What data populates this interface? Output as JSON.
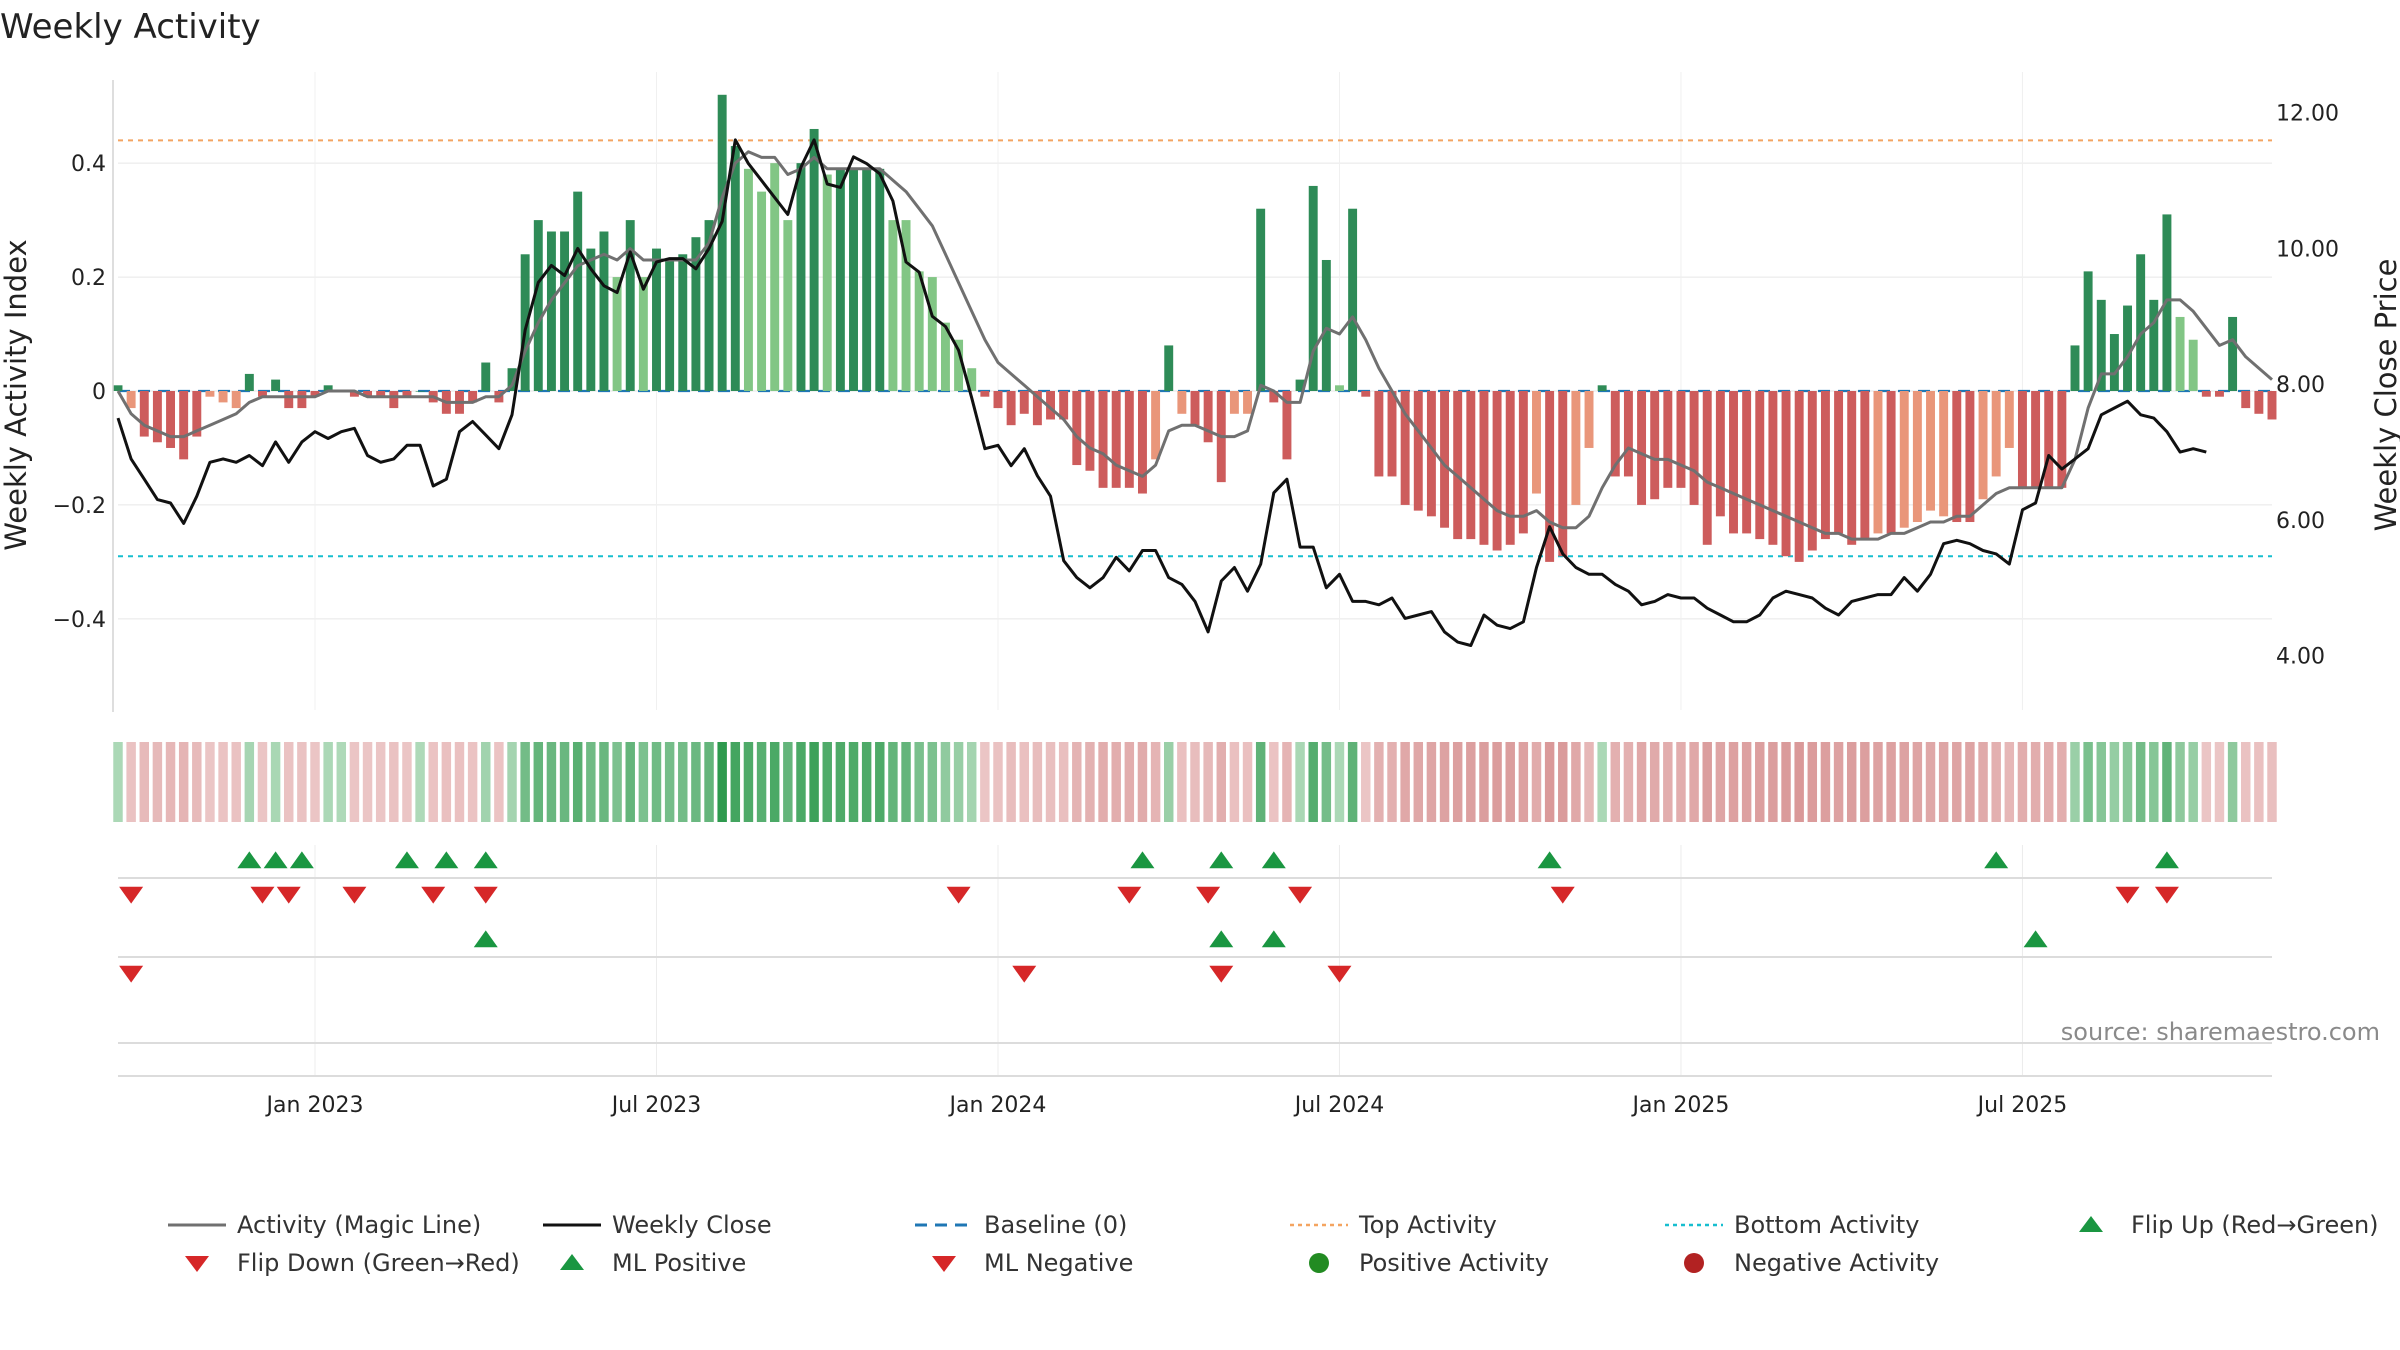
{
  "title": "Weekly Activity",
  "source": "source: sharemaestro.com",
  "colors": {
    "strong_green": "#2e8b57",
    "light_green": "#82c685",
    "strong_red": "#cd5c5c",
    "light_red": "#e9967a",
    "magic_line": "#707070",
    "close_line": "#111111",
    "baseline": "#1f77b4",
    "top_line": "#f4a460",
    "bottom_line": "#17becf",
    "marker_up": "#1a9641",
    "marker_down": "#d62728",
    "pos_dot": "#228b22",
    "neg_dot": "#b22222",
    "grid": "#e6e6e6"
  },
  "chart_data": {
    "type": "bar",
    "title": "Weekly Activity",
    "ylabel_left": "Weekly Activity Index",
    "ylabel_right": "Weekly Close Price",
    "ylim_left": [
      -0.56,
      0.56
    ],
    "ylim_right": [
      3.2,
      12.6
    ],
    "left_ticks": [
      {
        "v": 0.4,
        "label": "0.4"
      },
      {
        "v": 0.2,
        "label": "0.2"
      },
      {
        "v": 0,
        "label": "0"
      },
      {
        "v": -0.2,
        "label": "−0.2"
      },
      {
        "v": -0.4,
        "label": "−0.4"
      }
    ],
    "right_ticks": [
      {
        "v": 12,
        "label": "12.00"
      },
      {
        "v": 10,
        "label": "10.00"
      },
      {
        "v": 8,
        "label": "8.00"
      },
      {
        "v": 6,
        "label": "6.00"
      },
      {
        "v": 4,
        "label": "4.00"
      }
    ],
    "x_ticks": [
      {
        "i": 15,
        "label": "Jan 2023"
      },
      {
        "i": 41,
        "label": "Jul 2023"
      },
      {
        "i": 67,
        "label": "Jan 2024"
      },
      {
        "i": 93,
        "label": "Jul 2024"
      },
      {
        "i": 119,
        "label": "Jan 2025"
      },
      {
        "i": 145,
        "label": "Jul 2025"
      }
    ],
    "top_activity": 0.44,
    "bottom_activity": -0.29,
    "baseline": 0,
    "activity": [
      0.01,
      -0.03,
      -0.08,
      -0.09,
      -0.1,
      -0.12,
      -0.08,
      -0.01,
      -0.02,
      -0.03,
      0.03,
      -0.01,
      0.02,
      -0.03,
      -0.03,
      -0.01,
      0.01,
      0.0,
      -0.01,
      -0.01,
      -0.01,
      -0.03,
      -0.01,
      -0.0,
      -0.02,
      -0.04,
      -0.04,
      -0.02,
      0.05,
      -0.02,
      0.04,
      0.24,
      0.3,
      0.28,
      0.28,
      0.35,
      0.25,
      0.28,
      0.2,
      0.3,
      0.2,
      0.25,
      0.23,
      0.24,
      0.27,
      0.3,
      0.52,
      0.43,
      0.39,
      0.35,
      0.4,
      0.3,
      0.4,
      0.46,
      0.38,
      0.39,
      0.39,
      0.39,
      0.39,
      0.3,
      0.3,
      0.21,
      0.2,
      0.12,
      0.09,
      0.04,
      -0.01,
      -0.03,
      -0.06,
      -0.04,
      -0.06,
      -0.05,
      -0.05,
      -0.13,
      -0.14,
      -0.17,
      -0.17,
      -0.17,
      -0.18,
      -0.12,
      0.08,
      -0.04,
      -0.06,
      -0.09,
      -0.16,
      -0.04,
      -0.04,
      0.32,
      -0.02,
      -0.12,
      0.02,
      0.36,
      0.23,
      0.01,
      0.32,
      -0.01,
      -0.15,
      -0.15,
      -0.2,
      -0.21,
      -0.22,
      -0.24,
      -0.26,
      -0.26,
      -0.27,
      -0.28,
      -0.27,
      -0.25,
      -0.18,
      -0.3,
      -0.29,
      -0.2,
      -0.1,
      0.01,
      -0.15,
      -0.15,
      -0.2,
      -0.19,
      -0.17,
      -0.17,
      -0.2,
      -0.27,
      -0.22,
      -0.25,
      -0.25,
      -0.26,
      -0.27,
      -0.29,
      -0.3,
      -0.28,
      -0.26,
      -0.25,
      -0.27,
      -0.26,
      -0.25,
      -0.25,
      -0.24,
      -0.23,
      -0.21,
      -0.22,
      -0.23,
      -0.23,
      -0.19,
      -0.15,
      -0.1,
      -0.17,
      -0.17,
      -0.17,
      -0.17,
      0.08,
      0.21,
      0.16,
      0.1,
      0.15,
      0.24,
      0.16,
      0.31,
      0.13,
      0.09,
      -0.01,
      -0.01,
      0.13,
      -0.03,
      -0.04,
      -0.05
    ],
    "magic_line": [
      0.0,
      -0.04,
      -0.06,
      -0.07,
      -0.08,
      -0.08,
      -0.07,
      -0.06,
      -0.05,
      -0.04,
      -0.02,
      -0.01,
      -0.01,
      -0.01,
      -0.01,
      -0.01,
      0.0,
      0.0,
      0.0,
      -0.01,
      -0.01,
      -0.01,
      -0.01,
      -0.01,
      -0.01,
      -0.02,
      -0.02,
      -0.02,
      -0.01,
      -0.01,
      0.01,
      0.07,
      0.12,
      0.16,
      0.19,
      0.22,
      0.23,
      0.24,
      0.23,
      0.25,
      0.23,
      0.23,
      0.23,
      0.23,
      0.23,
      0.26,
      0.34,
      0.4,
      0.42,
      0.41,
      0.41,
      0.38,
      0.39,
      0.41,
      0.39,
      0.39,
      0.39,
      0.39,
      0.39,
      0.37,
      0.35,
      0.32,
      0.29,
      0.24,
      0.19,
      0.14,
      0.09,
      0.05,
      0.03,
      0.01,
      -0.01,
      -0.03,
      -0.05,
      -0.08,
      -0.1,
      -0.11,
      -0.13,
      -0.14,
      -0.15,
      -0.13,
      -0.07,
      -0.06,
      -0.06,
      -0.07,
      -0.08,
      -0.08,
      -0.07,
      0.01,
      0.0,
      -0.02,
      -0.02,
      0.07,
      0.11,
      0.1,
      0.13,
      0.09,
      0.04,
      0.0,
      -0.04,
      -0.07,
      -0.1,
      -0.13,
      -0.15,
      -0.17,
      -0.19,
      -0.21,
      -0.22,
      -0.22,
      -0.21,
      -0.23,
      -0.24,
      -0.24,
      -0.22,
      -0.17,
      -0.13,
      -0.1,
      -0.11,
      -0.12,
      -0.12,
      -0.13,
      -0.14,
      -0.16,
      -0.17,
      -0.18,
      -0.19,
      -0.2,
      -0.21,
      -0.22,
      -0.23,
      -0.24,
      -0.25,
      -0.25,
      -0.26,
      -0.26,
      -0.26,
      -0.25,
      -0.25,
      -0.24,
      -0.23,
      -0.23,
      -0.22,
      -0.22,
      -0.2,
      -0.18,
      -0.17,
      -0.17,
      -0.17,
      -0.17,
      -0.17,
      -0.12,
      -0.03,
      0.03,
      0.03,
      0.06,
      0.1,
      0.12,
      0.16,
      0.16,
      0.14,
      0.11,
      0.08,
      0.09,
      0.06,
      0.04,
      0.02
    ],
    "weekly_close": [
      7.5,
      6.9,
      6.6,
      6.3,
      6.25,
      5.95,
      6.35,
      6.85,
      6.9,
      6.85,
      6.95,
      6.8,
      7.15,
      6.85,
      7.15,
      7.3,
      7.2,
      7.3,
      7.35,
      6.95,
      6.85,
      6.9,
      7.1,
      7.1,
      6.5,
      6.6,
      7.3,
      7.45,
      7.25,
      7.05,
      7.55,
      8.8,
      9.5,
      9.75,
      9.6,
      10.0,
      9.7,
      9.45,
      9.35,
      9.95,
      9.4,
      9.8,
      9.85,
      9.85,
      9.7,
      10.0,
      10.4,
      11.6,
      11.25,
      11.0,
      10.75,
      10.5,
      11.2,
      11.6,
      10.95,
      10.9,
      11.35,
      11.25,
      11.1,
      10.7,
      9.8,
      9.65,
      9.0,
      8.85,
      8.5,
      7.8,
      7.05,
      7.1,
      6.8,
      7.05,
      6.65,
      6.35,
      5.4,
      5.15,
      5.0,
      5.15,
      5.45,
      5.25,
      5.55,
      5.55,
      5.15,
      5.05,
      4.8,
      4.35,
      5.1,
      5.3,
      4.95,
      5.35,
      6.4,
      6.6,
      5.6,
      5.6,
      5.0,
      5.2,
      4.8,
      4.8,
      4.75,
      4.85,
      4.55,
      4.6,
      4.65,
      4.35,
      4.2,
      4.15,
      4.6,
      4.45,
      4.4,
      4.5,
      5.3,
      5.9,
      5.5,
      5.3,
      5.2,
      5.2,
      5.05,
      4.95,
      4.75,
      4.8,
      4.9,
      4.85,
      4.85,
      4.7,
      4.6,
      4.5,
      4.5,
      4.6,
      4.85,
      4.95,
      4.9,
      4.85,
      4.7,
      4.6,
      4.8,
      4.85,
      4.9,
      4.9,
      5.15,
      4.95,
      5.2,
      5.65,
      5.7,
      5.65,
      5.55,
      5.5,
      5.35,
      6.15,
      6.25,
      6.95,
      6.75,
      6.9,
      7.05,
      7.55,
      7.65,
      7.75,
      7.55,
      7.5,
      7.3,
      7.0,
      7.05,
      7.0
    ],
    "flips": {
      "up": [
        10,
        12,
        14,
        22,
        25,
        28,
        78,
        84,
        88,
        109,
        143,
        156
      ],
      "down": [
        1,
        11,
        13,
        18,
        24,
        28,
        64,
        77,
        83,
        90,
        110,
        153,
        156
      ]
    },
    "ml_signals": {
      "positive": [
        28,
        84,
        88,
        146
      ],
      "negative": [
        1,
        69,
        84,
        93
      ]
    },
    "legend": [
      {
        "label": "Activity (Magic Line)",
        "kind": "line",
        "color": "#707070",
        "dash": ""
      },
      {
        "label": "Weekly Close",
        "kind": "line",
        "color": "#111111",
        "dash": ""
      },
      {
        "label": "Baseline (0)",
        "kind": "line",
        "color": "#1f77b4",
        "dash": "12 8"
      },
      {
        "label": "Top Activity",
        "kind": "line",
        "color": "#f4a460",
        "dash": "4 4"
      },
      {
        "label": "Bottom Activity",
        "kind": "line",
        "color": "#17becf",
        "dash": "4 4"
      },
      {
        "label": "Flip Up (Red→Green)",
        "kind": "tri-up",
        "color": "#1a9641"
      },
      {
        "label": "Flip Down (Green→Red)",
        "kind": "tri-down",
        "color": "#d62728"
      },
      {
        "label": "ML Positive",
        "kind": "tri-up",
        "color": "#1a9641"
      },
      {
        "label": "ML Negative",
        "kind": "tri-down",
        "color": "#d62728"
      },
      {
        "label": "Positive Activity",
        "kind": "dot",
        "color": "#228b22"
      },
      {
        "label": "Negative Activity",
        "kind": "dot",
        "color": "#b22222"
      }
    ]
  }
}
